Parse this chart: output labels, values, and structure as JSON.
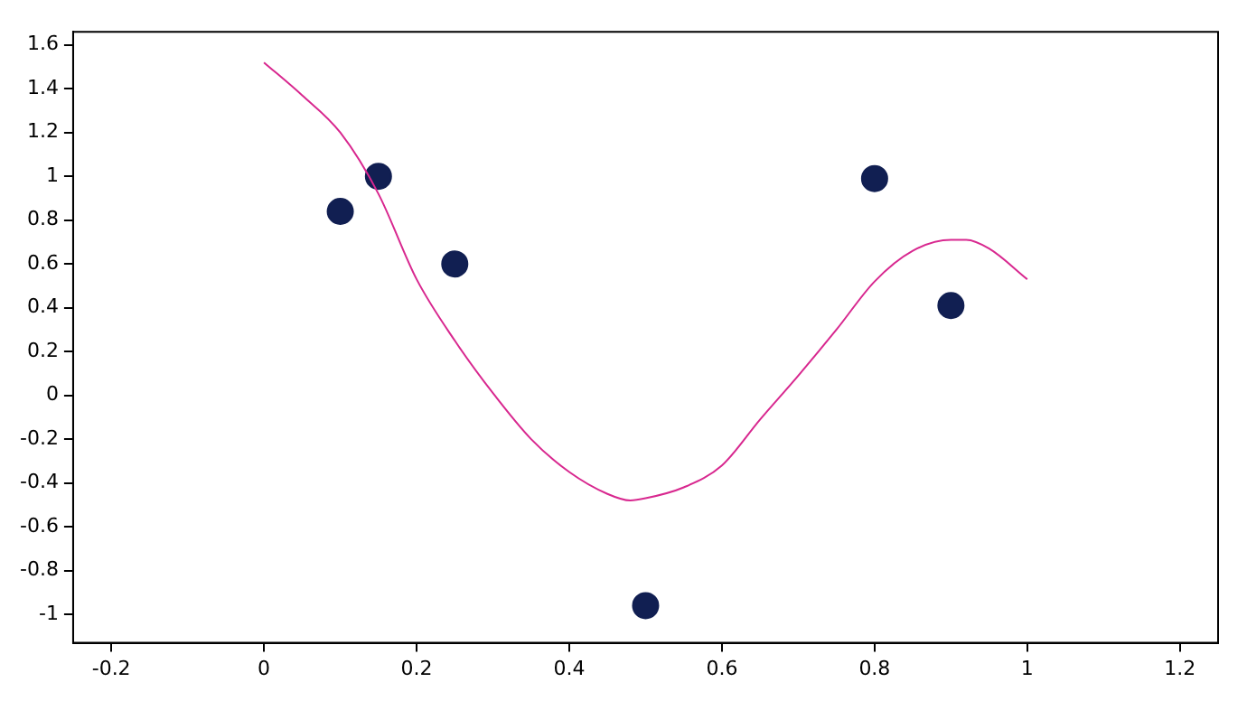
{
  "chart_data": {
    "type": "scatter",
    "xlim": [
      -0.25,
      1.25
    ],
    "ylim": [
      -1.13,
      1.66
    ],
    "xticks": [
      -0.2,
      0,
      0.2,
      0.4,
      0.6,
      0.8,
      1,
      1.2
    ],
    "yticks": [
      -1,
      -0.8,
      -0.6,
      -0.4,
      -0.2,
      0,
      0.2,
      0.4,
      0.6,
      0.8,
      1,
      1.2,
      1.4,
      1.6
    ],
    "grid": false,
    "legend": false,
    "marker": "circle",
    "series": [
      {
        "type": "line",
        "color": "#d8288f",
        "marker": "none",
        "x": [
          0,
          0.05,
          0.1,
          0.15,
          0.2,
          0.25,
          0.3,
          0.35,
          0.4,
          0.45,
          0.48,
          0.5,
          0.55,
          0.6,
          0.65,
          0.7,
          0.75,
          0.8,
          0.85,
          0.9,
          0.92,
          0.95,
          1
        ],
        "values": [
          1.52,
          1.37,
          1.2,
          0.92,
          0.53,
          0.25,
          0.01,
          -0.2,
          -0.35,
          -0.45,
          -0.48,
          -0.47,
          -0.42,
          -0.32,
          -0.11,
          0.09,
          0.3,
          0.52,
          0.66,
          0.71,
          0.71,
          0.67,
          0.53
        ]
      },
      {
        "type": "scatter",
        "color": "#111f52",
        "x": [
          0.1,
          0.15,
          0.25,
          0.5,
          0.8,
          0.9
        ],
        "values": [
          0.84,
          1.0,
          0.6,
          -0.96,
          0.99,
          0.41
        ]
      }
    ]
  }
}
